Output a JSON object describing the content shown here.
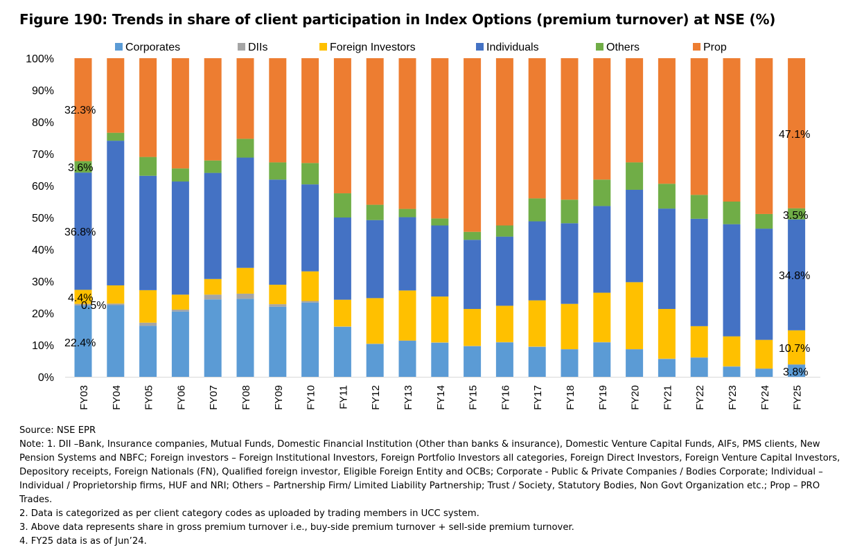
{
  "title": "Figure 190: Trends in share of client participation in Index Options (premium turnover) at NSE (%)",
  "source": "Source: NSE EPR",
  "notes": [
    "Note: 1. DII –Bank, Insurance companies, Mutual Funds, Domestic Financial Institution (Other than banks & insurance), Domestic Venture Capital Funds, AIFs, PMS clients, New Pension Systems and NBFC; Foreign investors – Foreign Institutional Investors, Foreign Portfolio Investors all categories, Foreign Direct Investors, Foreign Venture Capital Investors, Depository receipts, Foreign Nationals (FN), Qualified foreign investor, Eligible Foreign Entity and OCBs; Corporate - Public & Private Companies / Bodies Corporate; Individual – Individual / Proprietorship firms, HUF and NRI; Others – Partnership Firm/ Limited Liability  Partnership; Trust / Society, Statutory Bodies, Non Govt Organization etc.; Prop – PRO Trades.",
    "2.  Data is categorized as per client category codes as uploaded by trading members in UCC system.",
    "3. Above data represents share in gross premium turnover i.e., buy-side premium turnover + sell-side premium turnover.",
    "4. FY25 data is as of Jun’24."
  ],
  "chart_data": {
    "type": "bar",
    "stacked": true,
    "legend_position": "top",
    "grid": false,
    "ylim": [
      0,
      100
    ],
    "y_ticks": [
      "0%",
      "10%",
      "20%",
      "30%",
      "40%",
      "50%",
      "60%",
      "70%",
      "80%",
      "90%",
      "100%"
    ],
    "categories": [
      "FY03",
      "FY04",
      "FY05",
      "FY06",
      "FY07",
      "FY08",
      "FY09",
      "FY10",
      "FY11",
      "FY12",
      "FY13",
      "FY14",
      "FY15",
      "FY16",
      "FY17",
      "FY18",
      "FY19",
      "FY20",
      "FY21",
      "FY22",
      "FY23",
      "FY24",
      "FY25"
    ],
    "series": [
      {
        "name": "Corporates",
        "color": "#5B9BD5",
        "values": [
          22.4,
          22.5,
          16.0,
          20.5,
          24.3,
          24.5,
          22.0,
          23.3,
          15.7,
          10.3,
          11.3,
          10.7,
          9.6,
          10.8,
          9.4,
          8.6,
          10.8,
          8.6,
          5.6,
          6.0,
          3.2,
          2.5,
          3.8
        ]
      },
      {
        "name": "DIIs",
        "color": "#A5A5A5",
        "values": [
          0.5,
          0.5,
          1.0,
          0.6,
          1.5,
          1.6,
          0.8,
          0.5,
          0.1,
          0.1,
          0.1,
          0.1,
          0.1,
          0.1,
          0.1,
          0.1,
          0.1,
          0.1,
          0.1,
          0.1,
          0.1,
          0.1,
          0.1
        ]
      },
      {
        "name": "Foreign Investors",
        "color": "#FFC000",
        "values": [
          4.4,
          5.7,
          10.2,
          4.7,
          4.9,
          8.1,
          6.1,
          9.3,
          8.4,
          14.3,
          15.7,
          14.4,
          11.6,
          11.4,
          14.5,
          14.2,
          15.5,
          21.0,
          15.6,
          9.8,
          9.4,
          9.0,
          10.7
        ]
      },
      {
        "name": "Individuals",
        "color": "#4472C4",
        "values": [
          36.8,
          45.4,
          35.9,
          35.5,
          33.3,
          34.6,
          33.0,
          27.3,
          25.8,
          24.5,
          23.0,
          22.3,
          21.7,
          21.7,
          24.8,
          25.3,
          27.2,
          29.0,
          31.5,
          33.7,
          35.2,
          34.9,
          34.8
        ]
      },
      {
        "name": "Others",
        "color": "#70AD47",
        "values": [
          3.6,
          2.5,
          5.9,
          4.1,
          3.9,
          5.9,
          5.4,
          6.7,
          7.6,
          4.8,
          2.6,
          2.2,
          2.5,
          3.5,
          7.2,
          7.4,
          8.3,
          8.6,
          7.8,
          7.5,
          7.1,
          4.6,
          3.5
        ]
      },
      {
        "name": "Prop",
        "color": "#ED7D31",
        "values": [
          32.3,
          23.4,
          31.0,
          34.6,
          32.1,
          25.3,
          32.7,
          32.9,
          42.4,
          46.0,
          47.3,
          50.3,
          54.5,
          52.5,
          44.0,
          44.4,
          38.1,
          32.7,
          39.4,
          42.9,
          45.0,
          48.9,
          47.1
        ]
      }
    ],
    "data_labels": {
      "FY03": {
        "Corporates": "22.4%",
        "DIIs": "0.5%",
        "Foreign Investors": "4.4%",
        "Individuals": "36.8%",
        "Others": "3.6%",
        "Prop": "32.3%"
      },
      "FY25": {
        "Corporates": "3.8%",
        "Foreign Investors": "10.7%",
        "Individuals": "34.8%",
        "Others": "3.5%",
        "Prop": "47.1%"
      }
    }
  }
}
